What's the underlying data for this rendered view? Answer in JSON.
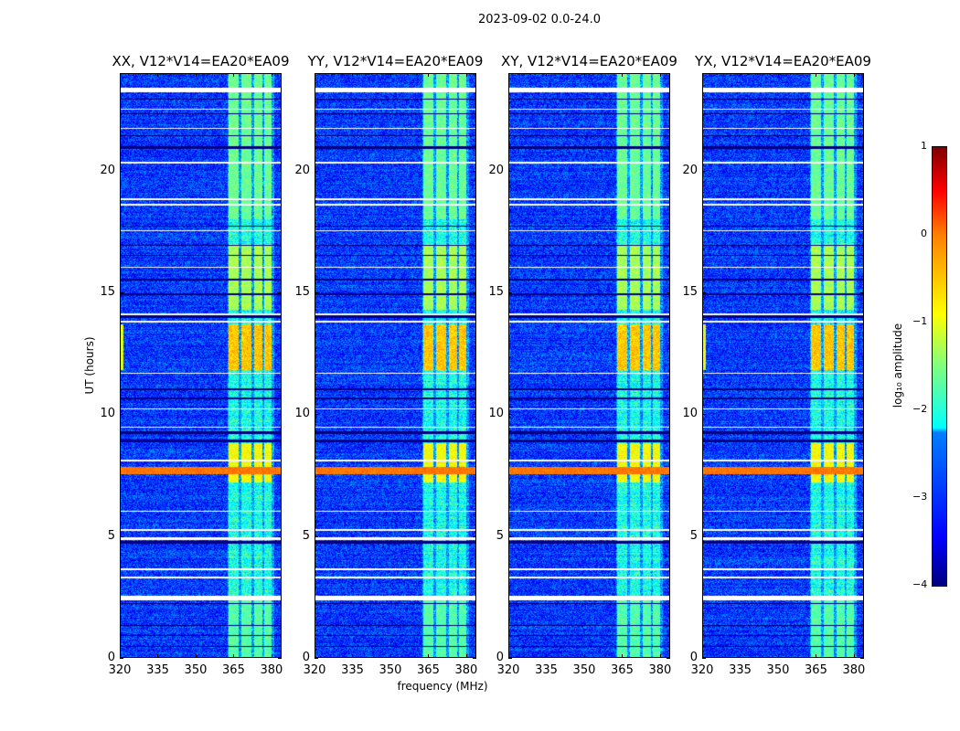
{
  "chart_data": {
    "type": "heatmap",
    "title": "2023-09-02 0.0-24.0",
    "xlabel": "frequency (MHz)",
    "ylabel": "UT (hours)",
    "xlim": [
      320,
      384
    ],
    "ylim": [
      0,
      24
    ],
    "xticks": [
      320,
      335,
      350,
      365,
      380
    ],
    "yticks": [
      0,
      5,
      10,
      15,
      20
    ],
    "panels": [
      {
        "title": "XX, V12*V14=EA20*EA09",
        "edge_rfi": true
      },
      {
        "title": "YY, V12*V14=EA20*EA09",
        "edge_rfi": false
      },
      {
        "title": "XY, V12*V14=EA20*EA09",
        "edge_rfi": false
      },
      {
        "title": "YX, V12*V14=EA20*EA09",
        "edge_rfi": true
      }
    ],
    "colorbar": {
      "label": "log₁₀ amplitude",
      "colormap": "jet",
      "range": [
        -4,
        1
      ],
      "ticks": [
        "−4",
        "−3",
        "−2",
        "−1",
        "0",
        "1"
      ]
    },
    "background_log_amplitude": -3.1,
    "rfi_subbands_mhz": [
      [
        363,
        367
      ],
      [
        368,
        372
      ],
      [
        373,
        376.5
      ],
      [
        377,
        380
      ]
    ],
    "bright_intervals_hours": [
      [
        11.8,
        13.7,
        -0.6
      ],
      [
        7.2,
        8.8,
        -0.9
      ],
      [
        14.3,
        17.0,
        -1.3
      ],
      [
        18.0,
        24.0,
        -1.6
      ],
      [
        0.0,
        2.4,
        -1.7
      ]
    ],
    "strong_rows_hours": [
      [
        7.55,
        7.85,
        -0.2
      ]
    ],
    "flagged_rows_hours": [
      [
        2.35,
        2.55
      ],
      [
        3.25,
        3.32
      ],
      [
        3.6,
        3.66
      ],
      [
        4.85,
        4.95
      ],
      [
        5.2,
        5.3
      ],
      [
        6.0,
        6.05
      ],
      [
        8.05,
        8.15
      ],
      [
        9.45,
        9.5
      ],
      [
        10.2,
        10.25
      ],
      [
        11.65,
        11.7
      ],
      [
        13.75,
        13.85
      ],
      [
        14.05,
        14.12
      ],
      [
        16.0,
        16.05
      ],
      [
        17.5,
        17.55
      ],
      [
        18.55,
        18.65
      ],
      [
        18.8,
        18.85
      ],
      [
        20.3,
        20.35
      ],
      [
        21.7,
        21.75
      ],
      [
        22.5,
        22.55
      ],
      [
        23.2,
        23.4
      ]
    ],
    "blank_rows_hours": [
      [
        0.45,
        0.5
      ],
      [
        0.9,
        0.95
      ],
      [
        1.3,
        1.35
      ],
      [
        2.2,
        2.25
      ],
      [
        4.7,
        4.8
      ],
      [
        8.85,
        8.95
      ],
      [
        9.2,
        9.3
      ],
      [
        10.6,
        10.7
      ],
      [
        11.0,
        11.05
      ],
      [
        13.95,
        14.05
      ],
      [
        14.9,
        14.95
      ],
      [
        15.5,
        15.55
      ],
      [
        16.5,
        16.55
      ],
      [
        16.9,
        16.95
      ],
      [
        17.7,
        17.75
      ],
      [
        20.9,
        21.0
      ],
      [
        21.4,
        21.45
      ],
      [
        22.3,
        22.35
      ],
      [
        22.9,
        22.95
      ]
    ]
  }
}
